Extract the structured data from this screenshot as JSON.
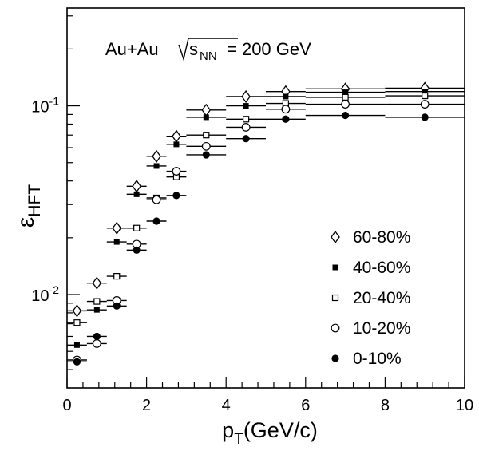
{
  "chart_data": {
    "type": "scatter",
    "annotation": {
      "prefix": "Au+Au",
      "sqrt_s": "s",
      "sqrt_sub": "NN",
      "suffix": "= 200 GeV"
    },
    "xlabel": {
      "main": "p",
      "sub": "T",
      "rest": "(GeV/c)"
    },
    "ylabel": {
      "main": "ε",
      "sub": "HFT"
    },
    "xlim": [
      0,
      10
    ],
    "ylim": [
      0.0032,
      0.33
    ],
    "log_y": true,
    "x_ticks": [
      0,
      2,
      4,
      6,
      8,
      10
    ],
    "x_tick_labels": [
      "0",
      "2",
      "4",
      "6",
      "8",
      "10"
    ],
    "y_major_ticks": [
      0.01,
      0.1
    ],
    "y_tick_labels": [
      {
        "base": "10",
        "exp": "-2"
      },
      {
        "base": "10",
        "exp": "-1"
      }
    ],
    "legend_position": "bottom-right",
    "series": [
      {
        "name": "60-80%",
        "marker": "diamond-open",
        "x": [
          0.25,
          0.75,
          1.25,
          1.75,
          2.25,
          2.75,
          3.5,
          4.5,
          5.5,
          7,
          9
        ],
        "y": [
          0.0082,
          0.0115,
          0.0225,
          0.0375,
          0.054,
          0.069,
          0.095,
          0.112,
          0.119,
          0.123,
          0.124
        ]
      },
      {
        "name": "40-60%",
        "marker": "square-filled",
        "x": [
          0.25,
          0.75,
          1.25,
          1.75,
          2.25,
          2.75,
          3.5,
          4.5,
          5.5,
          7,
          9
        ],
        "y": [
          0.0054,
          0.0083,
          0.019,
          0.034,
          0.048,
          0.0625,
          0.087,
          0.1,
          0.112,
          0.118,
          0.119
        ]
      },
      {
        "name": "20-40%",
        "marker": "square-open",
        "x": [
          0.25,
          0.75,
          1.25,
          1.75,
          2.25,
          2.75,
          3.5,
          4.5,
          5.5,
          7,
          9
        ],
        "y": [
          0.0071,
          0.0092,
          0.0125,
          0.0225,
          0.0325,
          0.042,
          0.07,
          0.085,
          0.103,
          0.111,
          0.113
        ]
      },
      {
        "name": "10-20%",
        "marker": "circle-open",
        "x": [
          0.25,
          0.75,
          1.25,
          1.75,
          2.25,
          2.75,
          3.5,
          4.5,
          5.5,
          7,
          9
        ],
        "y": [
          0.0045,
          0.0055,
          0.0093,
          0.0185,
          0.0318,
          0.045,
          0.061,
          0.077,
          0.096,
          0.102,
          0.102
        ]
      },
      {
        "name": "0-10%",
        "marker": "circle-filled",
        "x": [
          0.25,
          0.75,
          1.25,
          1.75,
          2.25,
          2.75,
          3.5,
          4.5,
          5.5,
          7,
          9
        ],
        "y": [
          0.0044,
          0.006,
          0.0087,
          0.0172,
          0.0245,
          0.0335,
          0.055,
          0.067,
          0.085,
          0.089,
          0.087
        ]
      }
    ],
    "x_bin_edges": [
      [
        0,
        0.5
      ],
      [
        0.5,
        1.0
      ],
      [
        1.0,
        1.5
      ],
      [
        1.5,
        2.0
      ],
      [
        2.0,
        2.5
      ],
      [
        2.5,
        3.0
      ],
      [
        3.0,
        4.0
      ],
      [
        4.0,
        5.0
      ],
      [
        5.0,
        6.0
      ],
      [
        6.0,
        8.0
      ],
      [
        8.0,
        10.0
      ]
    ]
  }
}
